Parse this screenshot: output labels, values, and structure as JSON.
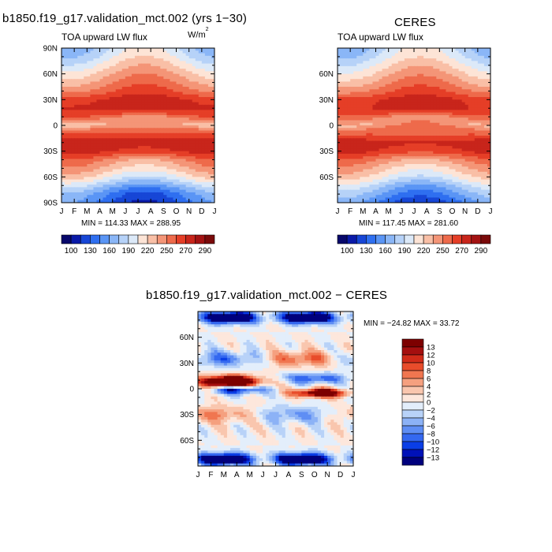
{
  "panels": [
    {
      "main_title": "b1850.f19_g17.validation_mct.002 (yrs 1−30)",
      "subtitle": "TOA upward LW flux",
      "units": "W/m",
      "units_sup": "2",
      "stats": "MIN = 114.33  MAX = 288.95",
      "y_ticks": [
        "90N",
        "60N",
        "30N",
        "0",
        "30S",
        "60S",
        "90S"
      ],
      "x_ticks": [
        "J",
        "F",
        "M",
        "A",
        "M",
        "J",
        "J",
        "A",
        "S",
        "O",
        "N",
        "D",
        "J"
      ],
      "colorbar_labels": [
        "100",
        "130",
        "160",
        "190",
        "220",
        "250",
        "270",
        "290"
      ]
    },
    {
      "main_title": "CERES",
      "subtitle": "TOA upward LW flux",
      "stats": "MIN = 117.45  MAX = 281.60",
      "y_ticks": [
        "60N",
        "30N",
        "0",
        "30S",
        "60S"
      ],
      "x_ticks": [
        "J",
        "F",
        "M",
        "A",
        "M",
        "J",
        "J",
        "A",
        "S",
        "O",
        "N",
        "D",
        "J"
      ],
      "colorbar_labels": [
        "100",
        "130",
        "160",
        "190",
        "220",
        "250",
        "270",
        "290"
      ]
    },
    {
      "main_title": "b1850.f19_g17.validation_mct.002 − CERES",
      "stats": "MIN = −24.82  MAX =   33.72",
      "y_ticks": [
        "60N",
        "30N",
        "0",
        "30S",
        "60S"
      ],
      "x_ticks": [
        "J",
        "F",
        "M",
        "A",
        "M",
        "J",
        "J",
        "A",
        "S",
        "O",
        "N",
        "D",
        "J"
      ],
      "colorbar_labels": [
        "13",
        "12",
        "10",
        "8",
        "6",
        "4",
        "2",
        "0",
        "−2",
        "−4",
        "−6",
        "−8",
        "−10",
        "−12",
        "−13"
      ]
    }
  ],
  "colors": {
    "abs_scale": [
      "#08086b",
      "#0a1aa8",
      "#1746d6",
      "#2f6ff0",
      "#5a95f5",
      "#8ab6f7",
      "#b6d2f8",
      "#dce9f8",
      "#fde4d6",
      "#f9bfa6",
      "#f49577",
      "#ee6a4b",
      "#e53e27",
      "#c8251b",
      "#a31212",
      "#7a0a0a"
    ],
    "diff_scale": [
      "#00007d",
      "#0011b8",
      "#0a3ee6",
      "#3468f0",
      "#5f8ef4",
      "#8cb2f6",
      "#b8d2f8",
      "#e3eefb",
      "#fde7dc",
      "#f9c6ae",
      "#f5a07f",
      "#f07650",
      "#e84c2b",
      "#d12b19",
      "#a50f0f",
      "#7d0000"
    ]
  },
  "chart_data": [
    {
      "type": "heatmap",
      "name": "model",
      "x": [
        "J",
        "F",
        "M",
        "A",
        "M",
        "J",
        "J",
        "A",
        "S",
        "O",
        "N",
        "D",
        "J"
      ],
      "y_lat": [
        -90,
        -75,
        -60,
        -45,
        -30,
        -15,
        0,
        15,
        30,
        45,
        60,
        75,
        90
      ],
      "xlabel": "",
      "ylabel": "",
      "zlim": [
        114.33,
        288.95
      ],
      "legend": "bottom",
      "profile_lat": [
        -90,
        -80,
        -70,
        -60,
        -50,
        -40,
        -30,
        -20,
        -10,
        0,
        10,
        20,
        30,
        40,
        50,
        60,
        70,
        80,
        90
      ],
      "profile_val": [
        130,
        140,
        165,
        195,
        215,
        232,
        262,
        270,
        250,
        230,
        248,
        265,
        262,
        242,
        228,
        215,
        200,
        185,
        175
      ]
    },
    {
      "type": "heatmap",
      "name": "ceres",
      "x": [
        "J",
        "F",
        "M",
        "A",
        "M",
        "J",
        "J",
        "A",
        "S",
        "O",
        "N",
        "D",
        "J"
      ],
      "y_lat": [
        -90,
        -75,
        -60,
        -45,
        -30,
        -15,
        0,
        15,
        30,
        45,
        60,
        75,
        90
      ],
      "xlabel": "",
      "ylabel": "",
      "zlim": [
        117.45,
        281.6
      ],
      "legend": "bottom",
      "profile_lat": [
        -90,
        -80,
        -70,
        -60,
        -50,
        -40,
        -30,
        -20,
        -10,
        0,
        10,
        20,
        30,
        40,
        50,
        60,
        70,
        80,
        90
      ],
      "profile_val": [
        135,
        150,
        170,
        195,
        212,
        230,
        258,
        265,
        245,
        235,
        245,
        262,
        260,
        240,
        226,
        212,
        198,
        184,
        176
      ]
    },
    {
      "type": "heatmap",
      "name": "difference",
      "x": [
        "J",
        "F",
        "M",
        "A",
        "M",
        "J",
        "J",
        "A",
        "S",
        "O",
        "N",
        "D",
        "J"
      ],
      "y_lat": [
        -90,
        -75,
        -60,
        -45,
        -30,
        -15,
        0,
        15,
        30,
        45,
        60,
        75,
        90
      ],
      "xlabel": "",
      "ylabel": "",
      "zlim": [
        -24.82,
        33.72
      ],
      "legend": "right",
      "levels": [
        -13,
        -12,
        -10,
        -8,
        -6,
        -4,
        -2,
        0,
        2,
        4,
        6,
        8,
        10,
        12,
        13
      ]
    }
  ]
}
